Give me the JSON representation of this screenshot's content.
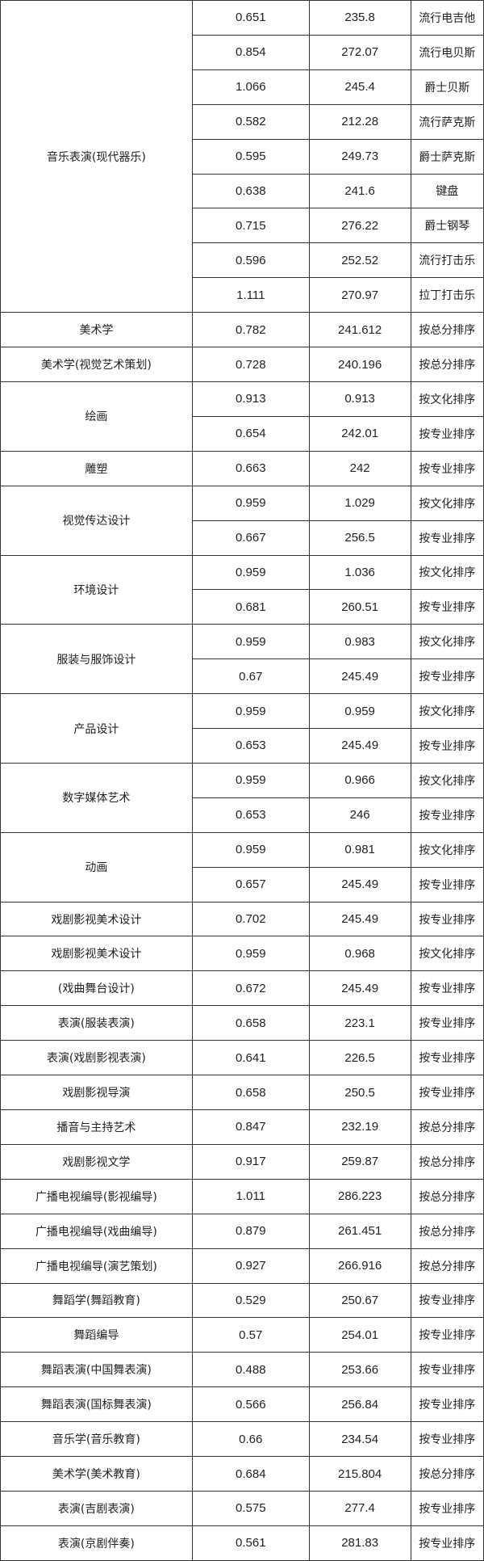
{
  "table": {
    "groups": [
      {
        "major": "音乐表演(现代器乐)",
        "rows": [
          [
            "0.651",
            "235.8",
            "流行电吉他"
          ],
          [
            "0.854",
            "272.07",
            "流行电贝斯"
          ],
          [
            "1.066",
            "245.4",
            "爵士贝斯"
          ],
          [
            "0.582",
            "212.28",
            "流行萨克斯"
          ],
          [
            "0.595",
            "249.73",
            "爵士萨克斯"
          ],
          [
            "0.638",
            "241.6",
            "键盘"
          ],
          [
            "0.715",
            "276.22",
            "爵士钢琴"
          ],
          [
            "0.596",
            "252.52",
            "流行打击乐"
          ],
          [
            "1.111",
            "270.97",
            "拉丁打击乐"
          ]
        ]
      },
      {
        "major": "美术学",
        "rows": [
          [
            "0.782",
            "241.612",
            "按总分排序"
          ]
        ]
      },
      {
        "major": "美术学(视觉艺术策划)",
        "rows": [
          [
            "0.728",
            "240.196",
            "按总分排序"
          ]
        ]
      },
      {
        "major": "绘画",
        "rows": [
          [
            "0.913",
            "0.913",
            "按文化排序"
          ],
          [
            "0.654",
            "242.01",
            "按专业排序"
          ]
        ]
      },
      {
        "major": "雕塑",
        "rows": [
          [
            "0.663",
            "242",
            "按专业排序"
          ]
        ]
      },
      {
        "major": "视觉传达设计",
        "rows": [
          [
            "0.959",
            "1.029",
            "按文化排序"
          ],
          [
            "0.667",
            "256.5",
            "按专业排序"
          ]
        ]
      },
      {
        "major": "环境设计",
        "rows": [
          [
            "0.959",
            "1.036",
            "按文化排序"
          ],
          [
            "0.681",
            "260.51",
            "按专业排序"
          ]
        ]
      },
      {
        "major": "服装与服饰设计",
        "rows": [
          [
            "0.959",
            "0.983",
            "按文化排序"
          ],
          [
            "0.67",
            "245.49",
            "按专业排序"
          ]
        ]
      },
      {
        "major": "产品设计",
        "rows": [
          [
            "0.959",
            "0.959",
            "按文化排序"
          ],
          [
            "0.653",
            "245.49",
            "按专业排序"
          ]
        ]
      },
      {
        "major": "数字媒体艺术",
        "rows": [
          [
            "0.959",
            "0.966",
            "按文化排序"
          ],
          [
            "0.653",
            "246",
            "按专业排序"
          ]
        ]
      },
      {
        "major": "动画",
        "rows": [
          [
            "0.959",
            "0.981",
            "按文化排序"
          ],
          [
            "0.657",
            "245.49",
            "按专业排序"
          ]
        ]
      },
      {
        "major": "戏剧影视美术设计",
        "rows": [
          [
            "0.702",
            "245.49",
            "按专业排序"
          ]
        ]
      },
      {
        "major": "戏剧影视美术设计",
        "rows": [
          [
            "0.959",
            "0.968",
            "按文化排序"
          ]
        ]
      },
      {
        "major": "(戏曲舞台设计)",
        "rows": [
          [
            "0.672",
            "245.49",
            "按专业排序"
          ]
        ]
      },
      {
        "major": "表演(服装表演)",
        "rows": [
          [
            "0.658",
            "223.1",
            "按专业排序"
          ]
        ]
      },
      {
        "major": "表演(戏剧影视表演)",
        "rows": [
          [
            "0.641",
            "226.5",
            "按专业排序"
          ]
        ]
      },
      {
        "major": "戏剧影视导演",
        "rows": [
          [
            "0.658",
            "250.5",
            "按专业排序"
          ]
        ]
      },
      {
        "major": "播音与主持艺术",
        "rows": [
          [
            "0.847",
            "232.19",
            "按总分排序"
          ]
        ]
      },
      {
        "major": "戏剧影视文学",
        "rows": [
          [
            "0.917",
            "259.87",
            "按总分排序"
          ]
        ]
      },
      {
        "major": "广播电视编导(影视编导)",
        "rows": [
          [
            "1.011",
            "286.223",
            "按总分排序"
          ]
        ]
      },
      {
        "major": "广播电视编导(戏曲编导)",
        "rows": [
          [
            "0.879",
            "261.451",
            "按总分排序"
          ]
        ]
      },
      {
        "major": "广播电视编导(演艺策划)",
        "rows": [
          [
            "0.927",
            "266.916",
            "按总分排序"
          ]
        ]
      },
      {
        "major": "舞蹈学(舞蹈教育)",
        "rows": [
          [
            "0.529",
            "250.67",
            "按专业排序"
          ]
        ]
      },
      {
        "major": "舞蹈编导",
        "rows": [
          [
            "0.57",
            "254.01",
            "按专业排序"
          ]
        ]
      },
      {
        "major": "舞蹈表演(中国舞表演)",
        "rows": [
          [
            "0.488",
            "253.66",
            "按专业排序"
          ]
        ]
      },
      {
        "major": "舞蹈表演(国标舞表演)",
        "rows": [
          [
            "0.566",
            "256.84",
            "按专业排序"
          ]
        ]
      },
      {
        "major": "音乐学(音乐教育)",
        "rows": [
          [
            "0.66",
            "234.54",
            "按专业排序"
          ]
        ]
      },
      {
        "major": "美术学(美术教育)",
        "rows": [
          [
            "0.684",
            "215.804",
            "按总分排序"
          ]
        ]
      },
      {
        "major": "表演(吉剧表演)",
        "rows": [
          [
            "0.575",
            "277.4",
            "按专业排序"
          ]
        ]
      },
      {
        "major": "表演(京剧伴奏)",
        "rows": [
          [
            "0.561",
            "281.83",
            "按专业排序"
          ]
        ]
      }
    ]
  }
}
